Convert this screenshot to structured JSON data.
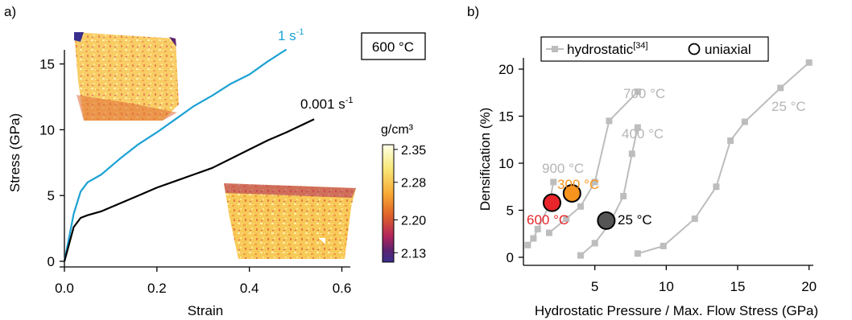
{
  "chart_data": [
    {
      "panel_label": "a)",
      "type": "line",
      "xlabel": "Strain",
      "ylabel": "Stress (GPa)",
      "xlim": [
        0,
        0.62
      ],
      "ylim": [
        0,
        16.5
      ],
      "xticks": [
        "0.0",
        "0.2",
        "0.4",
        "0.6"
      ],
      "xtick_values": [
        0,
        0.2,
        0.4,
        0.6
      ],
      "yticks": [
        "0",
        "5",
        "10",
        "15"
      ],
      "ytick_values": [
        0,
        5,
        10,
        15
      ],
      "annotation": "600 °C",
      "series": [
        {
          "name_base": "1 s",
          "name_sup": "-1",
          "color": "#1ba1d4",
          "x": [
            0,
            0.02,
            0.035,
            0.05,
            0.08,
            0.12,
            0.16,
            0.2,
            0.24,
            0.28,
            0.32,
            0.36,
            0.4,
            0.44,
            0.48
          ],
          "y": [
            0,
            3.6,
            5.3,
            6.0,
            6.6,
            7.8,
            8.9,
            9.8,
            10.8,
            11.8,
            12.6,
            13.5,
            14.2,
            15.2,
            16.1
          ]
        },
        {
          "name_base": "0.001 s",
          "name_sup": "-1",
          "color": "#000000",
          "x": [
            0,
            0.02,
            0.035,
            0.05,
            0.08,
            0.12,
            0.16,
            0.2,
            0.24,
            0.28,
            0.32,
            0.36,
            0.4,
            0.44,
            0.48,
            0.54
          ],
          "y": [
            0,
            2.6,
            3.3,
            3.5,
            3.8,
            4.4,
            5.0,
            5.6,
            6.1,
            6.6,
            7.1,
            7.8,
            8.5,
            9.2,
            9.8,
            10.8
          ]
        }
      ],
      "colorbar": {
        "title": "g/cm³",
        "tick_labels": [
          "2.35",
          "2.28",
          "2.20",
          "2.13"
        ],
        "tick_values": [
          2.35,
          2.28,
          2.2,
          2.13
        ],
        "range": [
          2.11,
          2.36
        ],
        "colors": [
          "#ffffe6",
          "#f8e87a",
          "#f7a933",
          "#e0622a",
          "#b1245b",
          "#5c2370",
          "#3a2e8c"
        ]
      }
    },
    {
      "panel_label": "b)",
      "type": "line",
      "xlabel": "Hydrostatic Pressure / Max. Flow Stress (GPa)",
      "ylabel": "Densification (%)",
      "xlim": [
        0,
        20.3
      ],
      "ylim": [
        -1,
        22
      ],
      "xticks": [
        "5",
        "10",
        "15",
        "20"
      ],
      "xtick_values": [
        5,
        10,
        15,
        20
      ],
      "yticks": [
        "0",
        "5",
        "10",
        "15",
        "20"
      ],
      "ytick_values": [
        0,
        5,
        10,
        15,
        20
      ],
      "legend": {
        "hydrostatic_label": "hydrostatic",
        "hydrostatic_ref": "[34]",
        "uniaxial_label": "uniaxial"
      },
      "series": [
        {
          "name": "900 °C",
          "color": "#bdbdbd",
          "x": [
            0.3,
            0.7,
            1.0,
            1.8,
            2.1
          ],
          "y": [
            1.3,
            2.0,
            3.0,
            5.5,
            8.0
          ]
        },
        {
          "name": "700 °C",
          "color": "#bdbdbd",
          "x": [
            1.8,
            3.0,
            4.0,
            5.0,
            6.0,
            8.0
          ],
          "y": [
            2.6,
            4.1,
            5.4,
            8.0,
            14.5,
            17.6
          ]
        },
        {
          "name": "400 °C",
          "color": "#bdbdbd",
          "x": [
            4.0,
            5.0,
            6.0,
            7.0,
            7.6,
            8.0
          ],
          "y": [
            0.2,
            1.5,
            3.5,
            6.5,
            11.0,
            13.8
          ]
        },
        {
          "name": "25 °C",
          "color": "#bdbdbd",
          "x": [
            8.0,
            9.8,
            12.0,
            13.5,
            14.5,
            15.5,
            18.0,
            20.0
          ],
          "y": [
            0.4,
            1.2,
            4.1,
            7.5,
            12.4,
            14.4,
            18.0,
            20.7
          ]
        }
      ],
      "uniaxial_points": [
        {
          "label": "600 °C",
          "x": 2.0,
          "y": 5.8,
          "fill": "#e8252a",
          "label_color": "#e8252a"
        },
        {
          "label": "300 °C",
          "x": 3.4,
          "y": 6.8,
          "fill": "#f7941d",
          "label_color": "#f7941d"
        },
        {
          "label": "25 °C",
          "x": 5.8,
          "y": 3.9,
          "fill": "#555555",
          "label_color": "#000000"
        }
      ]
    }
  ]
}
